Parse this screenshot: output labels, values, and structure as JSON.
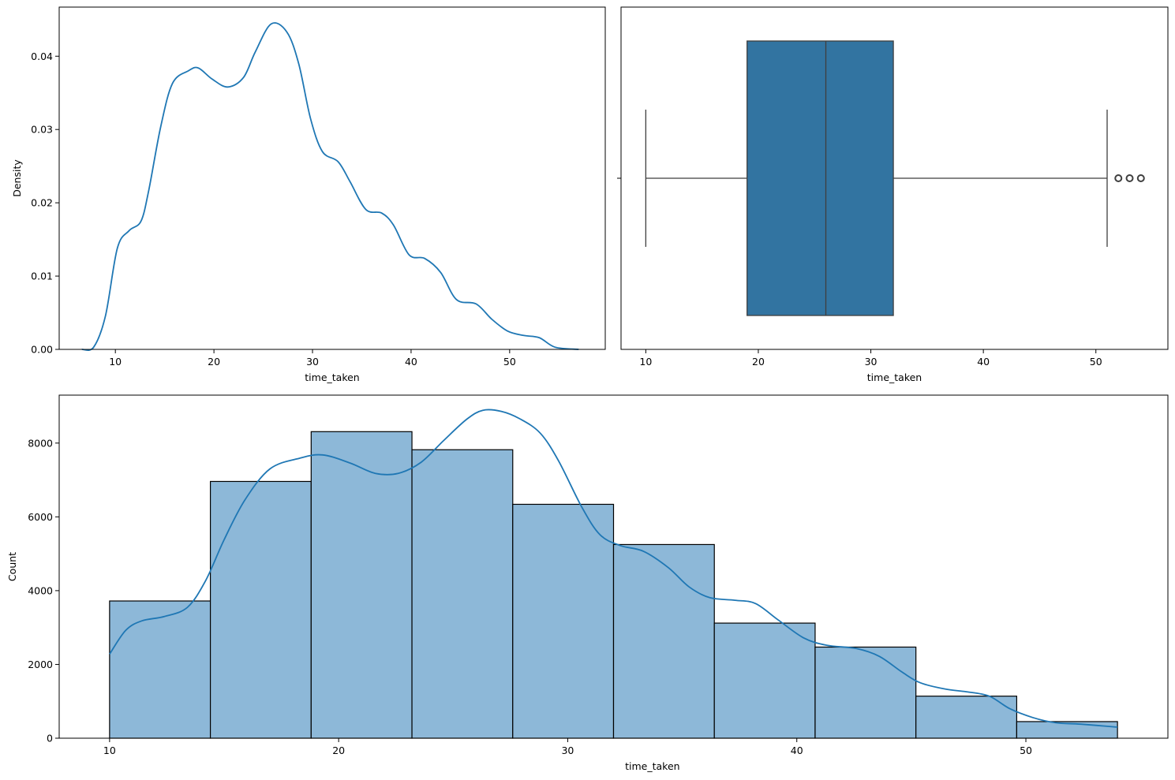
{
  "colors": {
    "line": "#1f77b4",
    "box_fill": "#3274a1",
    "box_edge": "#3f3f3f",
    "bar_fill": "#8db8d8",
    "bar_edge": "#000000"
  },
  "chart_data": [
    {
      "type": "line",
      "panel": "top-left",
      "title": "",
      "xlabel": "time_taken",
      "ylabel": "Density",
      "xlim": [
        4.3,
        59.7
      ],
      "ylim": [
        0,
        0.0467
      ],
      "xticks": [
        10,
        20,
        30,
        40,
        50
      ],
      "xtick_labels": [
        "10",
        "20",
        "30",
        "40",
        "50"
      ],
      "yticks": [
        0,
        0.01,
        0.02,
        0.03,
        0.04
      ],
      "ytick_labels": [
        "0.00",
        "0.01",
        "0.02",
        "0.03",
        "0.04"
      ],
      "series": [
        {
          "name": "kde",
          "x": [
            6.6,
            7.8,
            9.0,
            10.2,
            11.4,
            12.6,
            13.4,
            14.6,
            15.8,
            17.4,
            18.4,
            19.8,
            21.4,
            23.0,
            24.2,
            25.8,
            27.4,
            28.6,
            29.8,
            31.0,
            32.6,
            33.8,
            35.4,
            37.0,
            38.2,
            39.8,
            41.4,
            43.0,
            44.6,
            46.6,
            48.2,
            49.8,
            51.4,
            53.0,
            54.6,
            57.0
          ],
          "y": [
            0,
            0.0003,
            0.0046,
            0.0138,
            0.0162,
            0.0175,
            0.0218,
            0.0304,
            0.0363,
            0.038,
            0.0384,
            0.0369,
            0.0358,
            0.0371,
            0.0406,
            0.0444,
            0.0433,
            0.039,
            0.0315,
            0.027,
            0.0256,
            0.0229,
            0.0191,
            0.0186,
            0.017,
            0.0129,
            0.0124,
            0.0105,
            0.0068,
            0.0062,
            0.0041,
            0.0025,
            0.0019,
            0.0016,
            0.0003,
            0
          ]
        }
      ]
    },
    {
      "type": "box",
      "panel": "top-right",
      "title": "",
      "xlabel": "time_taken",
      "ylabel": "",
      "xlim": [
        7.8,
        56.4
      ],
      "xticks": [
        10,
        20,
        30,
        40,
        50
      ],
      "xtick_labels": [
        "10",
        "20",
        "30",
        "40",
        "50"
      ],
      "box": {
        "whisker_low": 10,
        "q1": 19,
        "median": 26,
        "q3": 32,
        "whisker_high": 51,
        "outliers": [
          52,
          53,
          54
        ]
      }
    },
    {
      "type": "bar",
      "panel": "bottom",
      "title": "",
      "xlabel": "time_taken",
      "ylabel": "Count",
      "xlim": [
        7.8,
        56.2
      ],
      "ylim": [
        0,
        9300
      ],
      "xticks": [
        10,
        20,
        30,
        40,
        50
      ],
      "xtick_labels": [
        "10",
        "20",
        "30",
        "40",
        "50"
      ],
      "yticks": [
        0,
        2000,
        4000,
        6000,
        8000
      ],
      "ytick_labels": [
        "0",
        "2000",
        "4000",
        "6000",
        "8000"
      ],
      "bin_edges": [
        10,
        14.4,
        18.8,
        23.2,
        27.6,
        32.0,
        36.4,
        40.8,
        45.2,
        49.6,
        54.0
      ],
      "values": [
        3720,
        6960,
        8310,
        7820,
        6340,
        5250,
        3120,
        2470,
        1140,
        450
      ],
      "kde": {
        "x": [
          10.0,
          10.7,
          11.4,
          12.4,
          13.4,
          14.2,
          15.0,
          15.9,
          17.0,
          18.3,
          19.3,
          20.5,
          21.6,
          22.6,
          23.6,
          24.6,
          25.6,
          26.3,
          27.1,
          27.9,
          28.8,
          29.6,
          30.6,
          31.4,
          32.3,
          33.3,
          34.4,
          35.3,
          36.2,
          37.3,
          38.2,
          39.2,
          40.3,
          41.3,
          42.6,
          43.6,
          44.6,
          45.4,
          46.5,
          47.4,
          48.4,
          49.3,
          50.3,
          51.3,
          52.4,
          54.0
        ],
        "y": [
          2280,
          2920,
          3180,
          3300,
          3550,
          4280,
          5380,
          6450,
          7300,
          7590,
          7680,
          7460,
          7180,
          7180,
          7480,
          8080,
          8650,
          8890,
          8860,
          8660,
          8270,
          7520,
          6280,
          5520,
          5220,
          5070,
          4620,
          4100,
          3810,
          3740,
          3650,
          3200,
          2720,
          2520,
          2430,
          2220,
          1790,
          1500,
          1330,
          1260,
          1140,
          800,
          560,
          420,
          380,
          300
        ]
      }
    }
  ]
}
